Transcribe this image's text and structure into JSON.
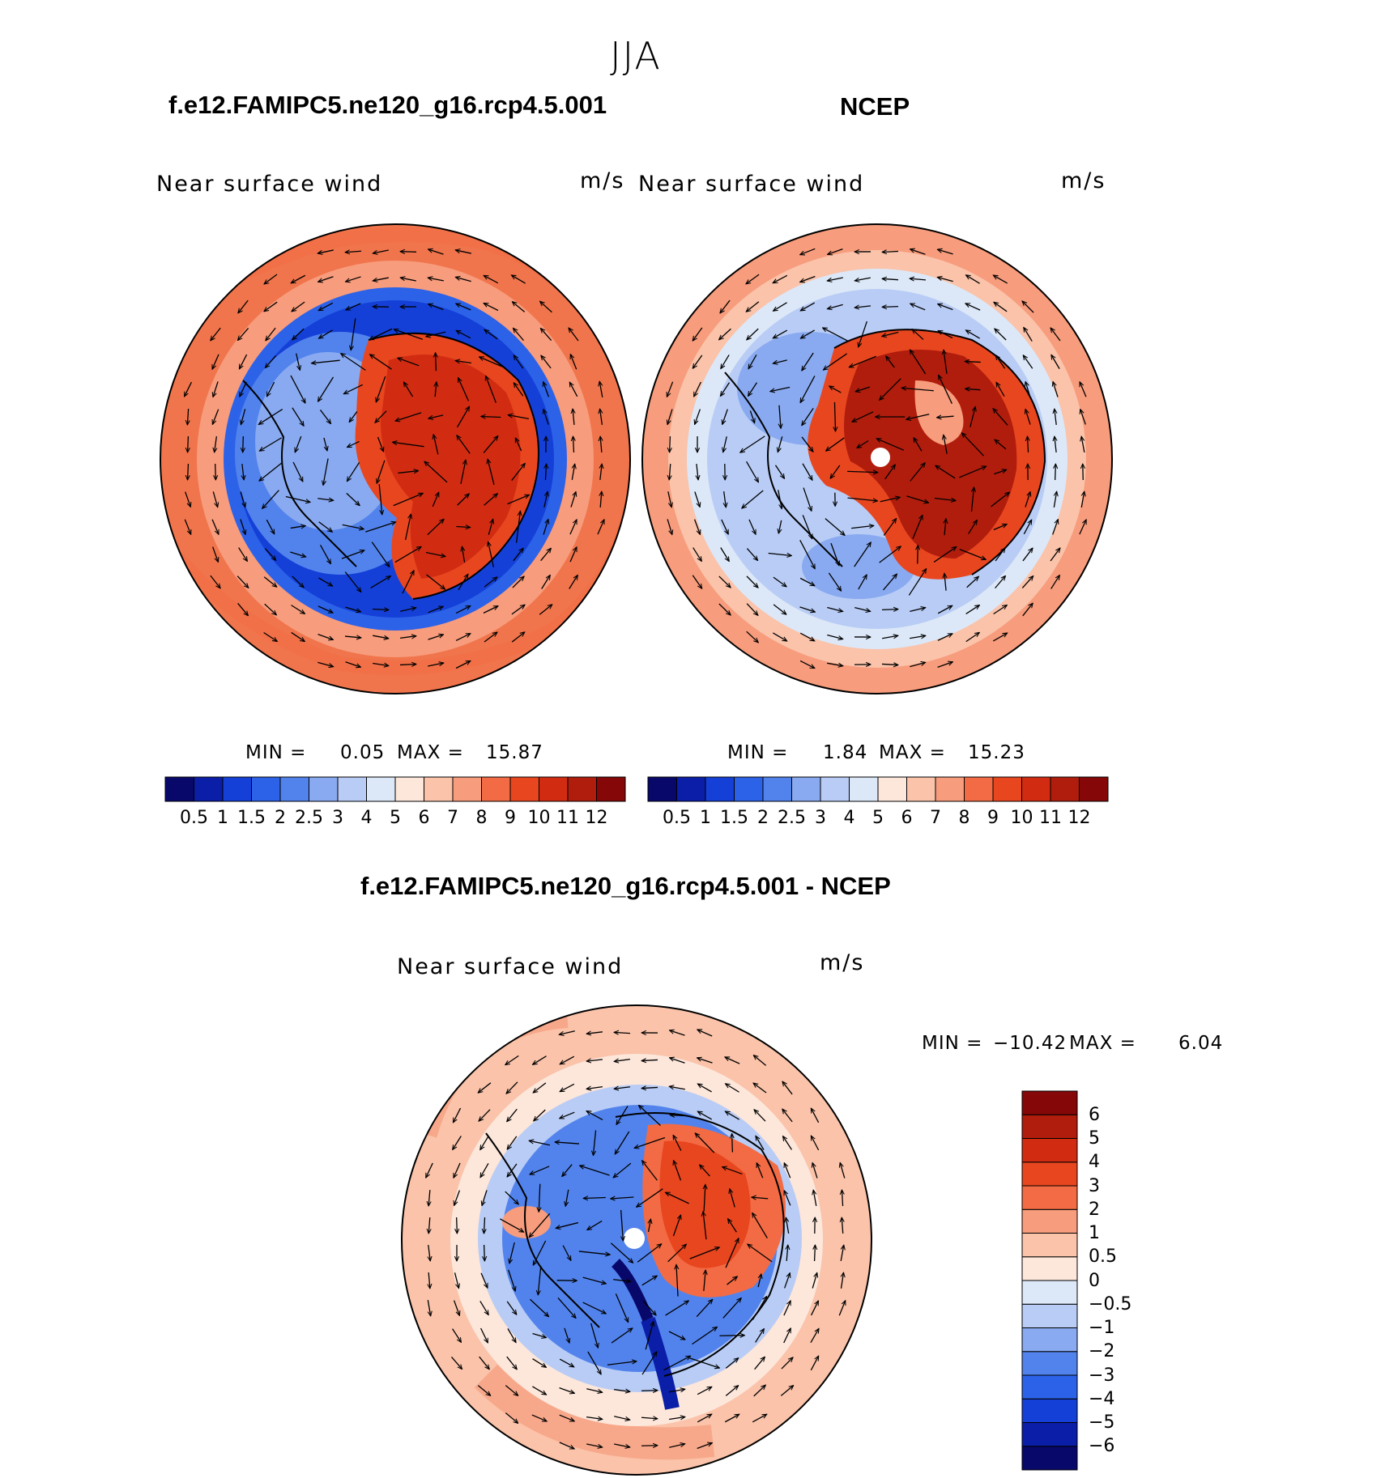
{
  "figure": {
    "title": "JJA",
    "panels": [
      {
        "title": "f.e12.FAMIPC5.ne120_g16.rcp4.5.001",
        "variable": "Near surface wind",
        "units": "m/s",
        "min_label": "MIN =",
        "min": "0.05",
        "max_label": "MAX =",
        "max": "15.87"
      },
      {
        "title": "NCEP",
        "variable": "Near surface wind",
        "units": "m/s",
        "min_label": "MIN =",
        "min": "1.84",
        "max_label": "MAX =",
        "max": "15.23"
      },
      {
        "title": "f.e12.FAMIPC5.ne120_g16.rcp4.5.001 - NCEP",
        "variable": "Near surface wind",
        "units": "m/s",
        "min_label": "MIN =",
        "min": "−10.42",
        "max_label": "MAX =",
        "max": "6.04"
      }
    ]
  },
  "colorbars": {
    "wind": {
      "colors": [
        "#08086b",
        "#0a1ea8",
        "#1440d8",
        "#2c62e8",
        "#5283ec",
        "#89aaf0",
        "#b8ccf5",
        "#dce8f8",
        "#fde6da",
        "#fac3aa",
        "#f79c7c",
        "#f26b44",
        "#e8461f",
        "#d12c12",
        "#b01d0d",
        "#850707"
      ],
      "tick_labels": [
        "0.5",
        "1",
        "1.5",
        "2",
        "2.5",
        "3",
        "4",
        "5",
        "6",
        "7",
        "8",
        "9",
        "10",
        "11",
        "12"
      ]
    },
    "diff": {
      "colors": [
        "#08086b",
        "#0a1ea8",
        "#1440d8",
        "#2c62e8",
        "#5283ec",
        "#89aaf0",
        "#b8ccf5",
        "#dce8f8",
        "#fde6da",
        "#fac3aa",
        "#f79c7c",
        "#f26b44",
        "#e8461f",
        "#d12c12",
        "#b01d0d",
        "#850707"
      ],
      "tick_labels": [
        "−6",
        "−5",
        "−4",
        "−3",
        "−2",
        "−1",
        "−0.5",
        "0",
        "0.5",
        "1",
        "2",
        "3",
        "4",
        "5",
        "6"
      ]
    }
  }
}
